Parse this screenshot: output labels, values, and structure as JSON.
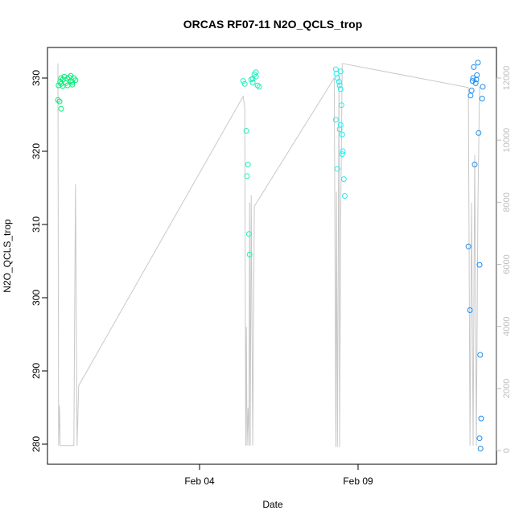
{
  "chart_data": {
    "type": "scatter",
    "title": "ORCAS RF07-11 N2O_QCLS_trop",
    "xlabel": "Date",
    "ylabel": "N2O_QCLS_trop",
    "x_tick_labels": [
      "Feb 04",
      "Feb 09"
    ],
    "x_tick_day": [
      4,
      9
    ],
    "xlim_day": [
      30.65,
      14.3
    ],
    "ylim": [
      278.5,
      333.5
    ],
    "y_ticks": [
      280,
      290,
      300,
      310,
      320,
      330
    ],
    "y2_ticks": [
      0,
      2000,
      4000,
      6000,
      8000,
      10000,
      12000
    ],
    "y2lim": [
      -300,
      13000
    ],
    "colors": {
      "line": "#c8c8c8",
      "axis": "#000000",
      "right_axis": "#bdbdbd"
    },
    "series": [
      {
        "color": "#00ee77",
        "points": [
          [
            0.9,
            327.0
          ],
          [
            0.95,
            326.8
          ],
          [
            1.0,
            325.8
          ],
          [
            0.92,
            329.0
          ],
          [
            0.97,
            329.5
          ],
          [
            1.0,
            330.0
          ],
          [
            1.05,
            329.8
          ],
          [
            1.1,
            330.2
          ],
          [
            1.15,
            329.3
          ],
          [
            1.2,
            329.9
          ],
          [
            1.25,
            330.1
          ],
          [
            1.3,
            329.6
          ],
          [
            1.35,
            329.4
          ],
          [
            1.4,
            330.0
          ],
          [
            1.45,
            329.7
          ],
          [
            1.0,
            329.2
          ],
          [
            1.05,
            328.9
          ],
          [
            1.2,
            329.0
          ],
          [
            1.3,
            330.3
          ],
          [
            1.35,
            329.1
          ]
        ]
      },
      {
        "color": "#22eebb",
        "points": [
          [
            6.7,
            329.6
          ],
          [
            6.75,
            329.2
          ],
          [
            6.8,
            322.8
          ],
          [
            6.82,
            316.6
          ],
          [
            6.85,
            318.2
          ],
          [
            6.88,
            308.7
          ],
          [
            6.9,
            305.9
          ],
          [
            6.95,
            329.8
          ],
          [
            7.0,
            329.4
          ],
          [
            7.05,
            330.5
          ],
          [
            7.1,
            330.8
          ],
          [
            7.15,
            329.0
          ],
          [
            7.2,
            328.8
          ],
          [
            7.1,
            330.2
          ],
          [
            7.0,
            329.9
          ]
        ]
      },
      {
        "color": "#22eeee",
        "points": [
          [
            9.6,
            331.2
          ],
          [
            9.62,
            330.6
          ],
          [
            9.65,
            330.0
          ],
          [
            9.7,
            329.5
          ],
          [
            9.72,
            329.0
          ],
          [
            9.75,
            328.5
          ],
          [
            9.6,
            324.3
          ],
          [
            9.65,
            317.6
          ],
          [
            9.72,
            323.0
          ],
          [
            9.75,
            323.6
          ],
          [
            9.78,
            326.3
          ],
          [
            9.8,
            319.6
          ],
          [
            9.82,
            320.0
          ],
          [
            9.85,
            316.2
          ],
          [
            9.88,
            313.9
          ],
          [
            9.75,
            330.9
          ],
          [
            9.8,
            322.3
          ]
        ]
      },
      {
        "color": "#1e8cf0",
        "points": [
          [
            13.75,
            307.0
          ],
          [
            13.8,
            298.3
          ],
          [
            13.82,
            327.6
          ],
          [
            13.85,
            328.3
          ],
          [
            13.88,
            329.6
          ],
          [
            13.9,
            330.0
          ],
          [
            13.92,
            331.5
          ],
          [
            13.95,
            318.2
          ],
          [
            13.98,
            329.3
          ],
          [
            14.0,
            329.8
          ],
          [
            14.02,
            330.4
          ],
          [
            14.05,
            332.1
          ],
          [
            14.07,
            322.5
          ],
          [
            14.1,
            304.5
          ],
          [
            14.12,
            292.2
          ],
          [
            14.15,
            283.5
          ],
          [
            14.1,
            280.8
          ],
          [
            14.13,
            279.4
          ],
          [
            14.18,
            327.2
          ],
          [
            14.2,
            328.8
          ]
        ]
      }
    ],
    "line_series": {
      "points": [
        [
          0.9,
          332.0
        ],
        [
          0.92,
          279.8
        ],
        [
          0.95,
          285.3
        ],
        [
          0.97,
          279.8
        ],
        [
          1.4,
          279.8
        ],
        [
          1.45,
          315.5
        ],
        [
          1.5,
          279.8
        ],
        [
          1.55,
          288.0
        ],
        [
          6.7,
          327.5
        ],
        [
          6.75,
          326.0
        ],
        [
          6.78,
          279.8
        ],
        [
          6.8,
          296.0
        ],
        [
          6.82,
          279.8
        ],
        [
          6.85,
          285.0
        ],
        [
          6.88,
          279.8
        ],
        [
          6.9,
          313.0
        ],
        [
          6.92,
          279.8
        ],
        [
          6.95,
          314.0
        ],
        [
          7.0,
          279.8
        ],
        [
          7.05,
          312.5
        ],
        [
          9.55,
          330.0
        ],
        [
          9.6,
          279.6
        ],
        [
          9.62,
          314.5
        ],
        [
          9.65,
          279.6
        ],
        [
          9.7,
          330.5
        ],
        [
          9.72,
          279.6
        ],
        [
          9.75,
          309.5
        ],
        [
          9.8,
          332.0
        ],
        [
          13.75,
          328.7
        ],
        [
          13.8,
          279.8
        ],
        [
          13.85,
          313.0
        ],
        [
          13.9,
          279.8
        ],
        [
          13.95,
          319.5
        ],
        [
          14.0,
          279.8
        ],
        [
          14.05,
          313.0
        ],
        [
          14.1,
          328.8
        ]
      ]
    }
  }
}
